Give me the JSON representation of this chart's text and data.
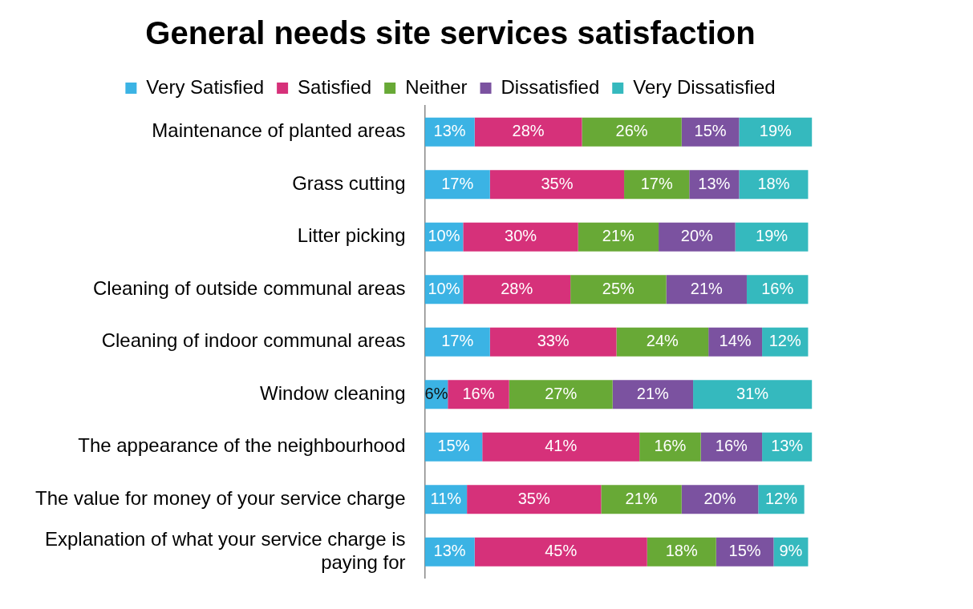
{
  "chart_data": {
    "type": "bar",
    "orientation": "horizontal",
    "stacked": true,
    "title": "General needs site services satisfaction",
    "legend": "top",
    "grid": false,
    "tick_labels": "y",
    "categories": [
      "Maintenance of planted areas",
      "Grass cutting",
      "Litter picking",
      "Cleaning of outside communal areas",
      "Cleaning of indoor communal areas",
      "Window cleaning",
      "The appearance of the neighbourhood",
      "The value for money of your service charge",
      "Explanation of what your service charge is paying for"
    ],
    "series": [
      {
        "name": "Very Satisfied",
        "color": "#3bb3e4",
        "values": [
          13,
          17,
          10,
          10,
          17,
          6,
          15,
          11,
          13
        ],
        "value_labels": [
          "13%",
          "17%",
          "10%",
          "10%",
          "17%",
          "6%",
          "15%",
          "11%",
          "13%"
        ]
      },
      {
        "name": "Satisfied",
        "color": "#d6317a",
        "values": [
          28,
          35,
          30,
          28,
          33,
          16,
          41,
          35,
          45
        ],
        "value_labels": [
          "28%",
          "35%",
          "30%",
          "28%",
          "33%",
          "16%",
          "41%",
          "35%",
          "45%"
        ]
      },
      {
        "name": "Neither",
        "color": "#68a936",
        "values": [
          26,
          17,
          21,
          25,
          24,
          27,
          16,
          21,
          18
        ],
        "value_labels": [
          "26%",
          "17%",
          "21%",
          "25%",
          "24%",
          "27%",
          "16%",
          "21%",
          "18%"
        ]
      },
      {
        "name": "Dissatisfied",
        "color": "#7b52a0",
        "values": [
          15,
          13,
          20,
          21,
          14,
          21,
          16,
          20,
          15
        ],
        "value_labels": [
          "15%",
          "13%",
          "20%",
          "21%",
          "14%",
          "21%",
          "16%",
          "20%",
          "15%"
        ]
      },
      {
        "name": "Very Dissatisfied",
        "color": "#35b9be",
        "values": [
          19,
          18,
          19,
          16,
          12,
          31,
          13,
          12,
          9
        ],
        "value_labels": [
          "19%",
          "18%",
          "19%",
          "16%",
          "12%",
          "31%",
          "13%",
          "12%",
          "9%"
        ]
      }
    ]
  }
}
